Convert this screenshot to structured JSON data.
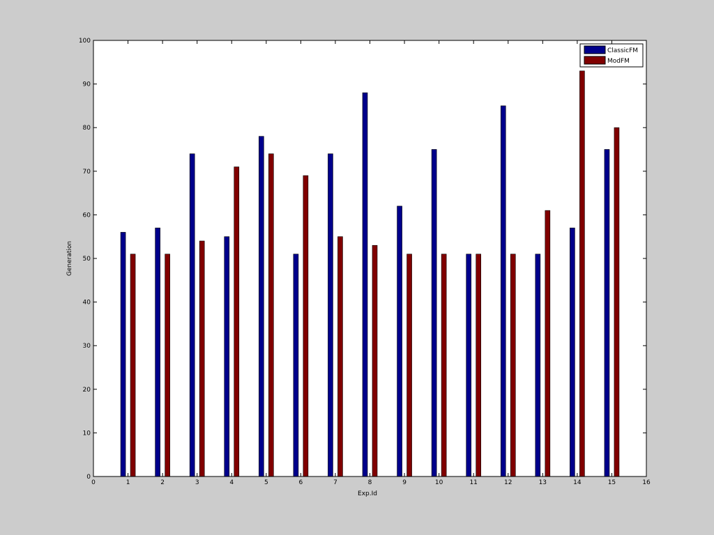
{
  "chart_data": {
    "type": "bar",
    "title": "",
    "xlabel": "Exp.Id",
    "ylabel": "Generation",
    "xlim": [
      0,
      16
    ],
    "ylim": [
      0,
      100
    ],
    "xticks": [
      0,
      1,
      2,
      3,
      4,
      5,
      6,
      7,
      8,
      9,
      10,
      11,
      12,
      13,
      14,
      15,
      16
    ],
    "yticks": [
      0,
      10,
      20,
      30,
      40,
      50,
      60,
      70,
      80,
      90,
      100
    ],
    "grid": false,
    "legend_position": "top-right",
    "categories": [
      1,
      2,
      3,
      4,
      5,
      6,
      7,
      8,
      9,
      10,
      11,
      12,
      13,
      14,
      15
    ],
    "series": [
      {
        "name": "ClassicFM",
        "color": "#00008b",
        "values": [
          56,
          57,
          74,
          55,
          78,
          51,
          74,
          88,
          62,
          75,
          51,
          85,
          51,
          57,
          75
        ]
      },
      {
        "name": "ModFM",
        "color": "#800000",
        "values": [
          51,
          51,
          54,
          71,
          74,
          69,
          55,
          53,
          51,
          51,
          51,
          51,
          61,
          93,
          80
        ]
      }
    ]
  }
}
